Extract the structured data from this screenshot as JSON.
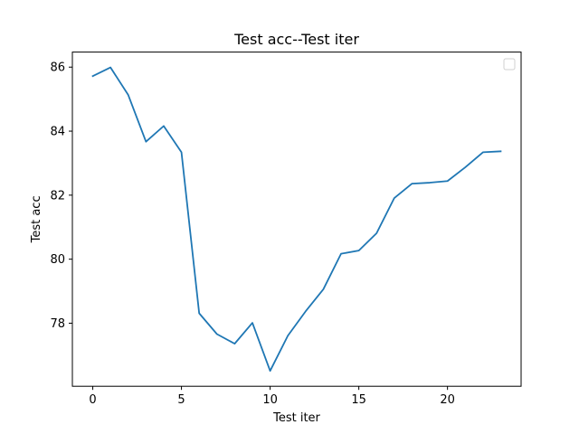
{
  "chart_data": {
    "type": "line",
    "title": "Test acc--Test iter",
    "xlabel": "Test iter",
    "ylabel": "Test acc",
    "xlim": [
      -1.15,
      24.15
    ],
    "ylim": [
      76.03,
      86.47
    ],
    "xticks": [
      0,
      5,
      10,
      15,
      20
    ],
    "yticks": [
      78,
      80,
      82,
      84,
      86
    ],
    "grid": false,
    "legend": "top-right",
    "series": [
      {
        "color": "#1f77b4",
        "x": [
          0,
          1,
          2,
          3,
          4,
          5,
          6,
          7,
          8,
          9,
          10,
          11,
          12,
          13,
          14,
          15,
          16,
          17,
          18,
          19,
          20,
          21,
          22,
          23
        ],
        "y": [
          85.72,
          85.99,
          85.13,
          83.67,
          84.16,
          83.34,
          78.31,
          77.66,
          77.36,
          78.01,
          76.51,
          77.61,
          78.37,
          79.06,
          80.17,
          80.27,
          80.81,
          81.91,
          82.36,
          82.39,
          82.44,
          82.87,
          83.34,
          83.37
        ]
      }
    ]
  }
}
